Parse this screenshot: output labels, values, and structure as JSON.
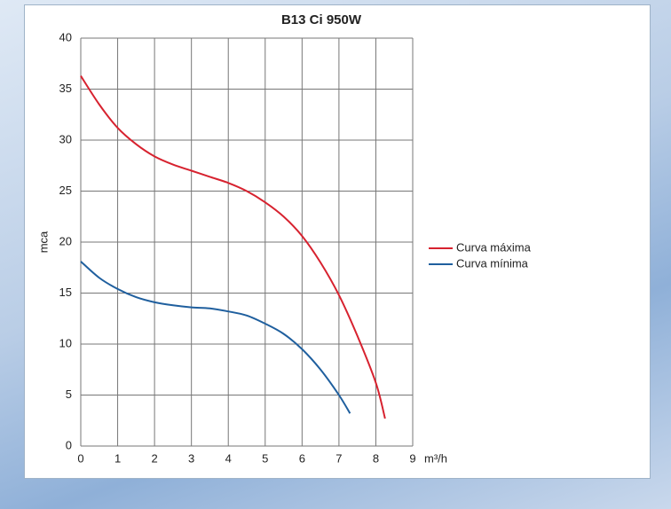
{
  "chart_data": {
    "type": "line",
    "title": "B13 Ci 950W",
    "y_label": "mca",
    "x_label": "m³/h",
    "xlim": [
      0,
      9
    ],
    "xticks": [
      0,
      1,
      2,
      3,
      4,
      5,
      6,
      7,
      8,
      9
    ],
    "ylim": [
      0,
      40
    ],
    "yticks": [
      0,
      5,
      10,
      15,
      20,
      25,
      30,
      35,
      40
    ],
    "grid": true,
    "legend": "right",
    "series": [
      {
        "name": "Curva máxima",
        "color": "#d7222f",
        "x": [
          0,
          0.5,
          1,
          1.5,
          2,
          2.5,
          3,
          3.5,
          4,
          4.5,
          5,
          5.5,
          6,
          6.5,
          7,
          7.5,
          8,
          8.25
        ],
        "values": [
          36.3,
          33.5,
          31.2,
          29.6,
          28.4,
          27.6,
          27,
          26.4,
          25.8,
          25,
          23.9,
          22.5,
          20.6,
          18,
          14.8,
          10.8,
          6.2,
          2.7
        ]
      },
      {
        "name": "Curva mínima",
        "color": "#1f5f9e",
        "x": [
          0,
          0.5,
          1,
          1.5,
          2,
          2.5,
          3,
          3.5,
          4,
          4.5,
          5,
          5.5,
          6,
          6.5,
          7,
          7.3
        ],
        "values": [
          18.1,
          16.5,
          15.4,
          14.6,
          14.1,
          13.8,
          13.6,
          13.5,
          13.2,
          12.8,
          12,
          11,
          9.5,
          7.5,
          5,
          3.2
        ]
      }
    ]
  }
}
